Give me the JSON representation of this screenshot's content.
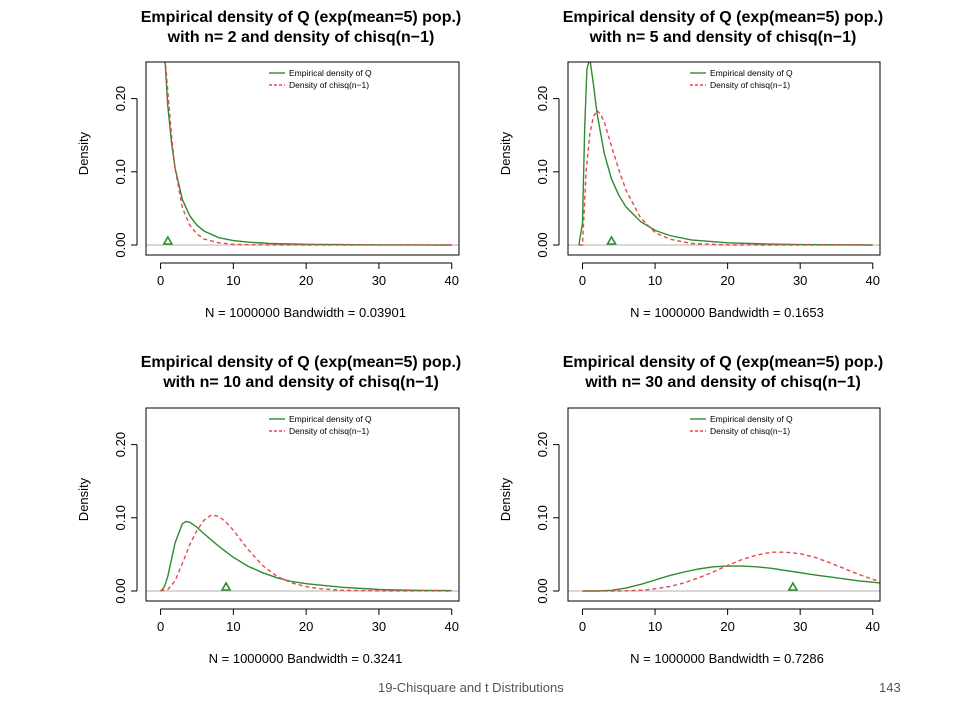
{
  "colors": {
    "empirical": "#2e8b2e",
    "chisq": "#e8474f",
    "axis": "#000000",
    "baseline": "#b0b0b0"
  },
  "legend": {
    "empirical": "Empirical density of Q",
    "chisq": "Density of chisq(n−1)"
  },
  "footer": {
    "title": "19-Chisquare and t Distributions",
    "page": "143"
  },
  "chart_data": [
    {
      "type": "line",
      "title_line1": "Empirical density of Q (exp(mean=5) pop.)",
      "title_line2": "with n= 2  and density of chisq(n−1)",
      "xlabel": "N = 1000000   Bandwidth = 0.03901",
      "ylabel": "Density",
      "xlim": [
        -2,
        41
      ],
      "ylim": [
        0,
        0.25
      ],
      "xticks": [
        "0",
        "10",
        "20",
        "30",
        "40"
      ],
      "yticks": [
        "0.00",
        "0.10",
        "0.20"
      ],
      "legend_position": "top-right",
      "triangle_x": 1,
      "series": [
        {
          "name": "Empirical density of Q",
          "x": [
            0.05,
            0.2,
            0.5,
            1,
            1.5,
            2,
            3,
            4,
            5,
            6,
            8,
            10,
            12,
            15,
            20,
            25,
            30,
            35,
            40
          ],
          "y": [
            0.27,
            0.27,
            0.27,
            0.19,
            0.14,
            0.105,
            0.062,
            0.04,
            0.027,
            0.019,
            0.01,
            0.006,
            0.004,
            0.002,
            0.001,
            0.0005,
            0.0002,
            0.0001,
            0
          ]
        },
        {
          "name": "Density of chisq(n−1)",
          "x": [
            0.05,
            0.2,
            0.5,
            1,
            1.5,
            2,
            3,
            4,
            5,
            6,
            8,
            10,
            12,
            15,
            20,
            25,
            30,
            35,
            40
          ],
          "y": [
            0.27,
            0.27,
            0.27,
            0.21,
            0.15,
            0.104,
            0.051,
            0.027,
            0.015,
            0.008,
            0.003,
            0.001,
            0.0004,
            0.0001,
            0,
            0,
            0,
            0,
            0
          ]
        }
      ]
    },
    {
      "type": "line",
      "title_line1": "Empirical density of Q (exp(mean=5) pop.)",
      "title_line2": "with n= 5  and density of chisq(n−1)",
      "xlabel": "N = 1000000   Bandwidth = 0.1653",
      "ylabel": "Density",
      "xlim": [
        -2,
        41
      ],
      "ylim": [
        0,
        0.25
      ],
      "xticks": [
        "0",
        "10",
        "20",
        "30",
        "40"
      ],
      "yticks": [
        "0.00",
        "0.10",
        "0.20"
      ],
      "legend_position": "top-right",
      "triangle_x": 4,
      "series": [
        {
          "name": "Empirical density of Q",
          "x": [
            -0.5,
            0,
            0.3,
            0.6,
            1,
            1.5,
            2,
            3,
            4,
            5,
            6,
            8,
            10,
            12,
            15,
            20,
            25,
            30,
            40
          ],
          "y": [
            0,
            0.03,
            0.16,
            0.24,
            0.255,
            0.22,
            0.18,
            0.125,
            0.09,
            0.068,
            0.052,
            0.032,
            0.02,
            0.013,
            0.007,
            0.003,
            0.0015,
            0.0006,
            0
          ]
        },
        {
          "name": "Density of chisq(n−1)",
          "x": [
            -0.5,
            0,
            0.5,
            1,
            1.5,
            2,
            2.5,
            3,
            4,
            5,
            6,
            8,
            10,
            12,
            15,
            20,
            25,
            30,
            40
          ],
          "y": [
            0,
            0,
            0.1,
            0.152,
            0.175,
            0.184,
            0.178,
            0.168,
            0.135,
            0.103,
            0.075,
            0.037,
            0.017,
            0.008,
            0.002,
            0.0002,
            0,
            0,
            0
          ]
        }
      ]
    },
    {
      "type": "line",
      "title_line1": "Empirical density of Q (exp(mean=5) pop.)",
      "title_line2": "with n= 10  and density of chisq(n−1)",
      "xlabel": "N = 1000000   Bandwidth = 0.3241",
      "ylabel": "Density",
      "xlim": [
        -2,
        41
      ],
      "ylim": [
        0,
        0.25
      ],
      "xticks": [
        "0",
        "10",
        "20",
        "30",
        "40"
      ],
      "yticks": [
        "0.00",
        "0.10",
        "0.20"
      ],
      "legend_position": "top-right",
      "triangle_x": 9,
      "series": [
        {
          "name": "Empirical density of Q",
          "x": [
            0,
            0.5,
            1,
            2,
            3,
            3.5,
            4,
            5,
            6,
            8,
            10,
            12,
            14,
            16,
            18,
            20,
            25,
            30,
            35,
            40
          ],
          "y": [
            0,
            0.005,
            0.02,
            0.066,
            0.092,
            0.095,
            0.094,
            0.087,
            0.078,
            0.061,
            0.046,
            0.034,
            0.025,
            0.018,
            0.013,
            0.01,
            0.005,
            0.002,
            0.001,
            0.0005
          ]
        },
        {
          "name": "Density of chisq(n−1)",
          "x": [
            0,
            1,
            2,
            3,
            4,
            5,
            6,
            7,
            8,
            9,
            10,
            12,
            14,
            16,
            18,
            20,
            22,
            25,
            30,
            40
          ],
          "y": [
            0,
            0.002,
            0.014,
            0.038,
            0.063,
            0.083,
            0.097,
            0.104,
            0.102,
            0.094,
            0.083,
            0.057,
            0.035,
            0.02,
            0.011,
            0.006,
            0.003,
            0.001,
            0.0001,
            0
          ]
        }
      ]
    },
    {
      "type": "line",
      "title_line1": "Empirical density of Q (exp(mean=5) pop.)",
      "title_line2": "with n= 30  and density of chisq(n−1)",
      "xlabel": "N = 1000000   Bandwidth = 0.7286",
      "ylabel": "Density",
      "xlim": [
        -2,
        41
      ],
      "ylim": [
        0,
        0.25
      ],
      "xticks": [
        "0",
        "10",
        "20",
        "30",
        "40"
      ],
      "yticks": [
        "0.00",
        "0.10",
        "0.20"
      ],
      "legend_position": "top-right",
      "triangle_x": 29,
      "series": [
        {
          "name": "Empirical density of Q",
          "x": [
            0,
            2,
            4,
            6,
            8,
            10,
            12,
            14,
            16,
            18,
            20,
            22,
            24,
            26,
            28,
            30,
            32,
            35,
            38,
            41
          ],
          "y": [
            0,
            0,
            0.001,
            0.004,
            0.009,
            0.015,
            0.021,
            0.026,
            0.03,
            0.033,
            0.034,
            0.034,
            0.033,
            0.031,
            0.028,
            0.025,
            0.022,
            0.018,
            0.014,
            0.011
          ]
        },
        {
          "name": "Density of chisq(n−1)",
          "x": [
            0,
            5,
            8,
            10,
            12,
            14,
            16,
            18,
            20,
            22,
            24,
            26,
            28,
            30,
            32,
            34,
            36,
            38,
            40,
            41
          ],
          "y": [
            0,
            0,
            0.001,
            0.003,
            0.006,
            0.011,
            0.018,
            0.026,
            0.035,
            0.043,
            0.049,
            0.053,
            0.053,
            0.051,
            0.046,
            0.039,
            0.031,
            0.023,
            0.016,
            0.013
          ]
        }
      ]
    }
  ]
}
